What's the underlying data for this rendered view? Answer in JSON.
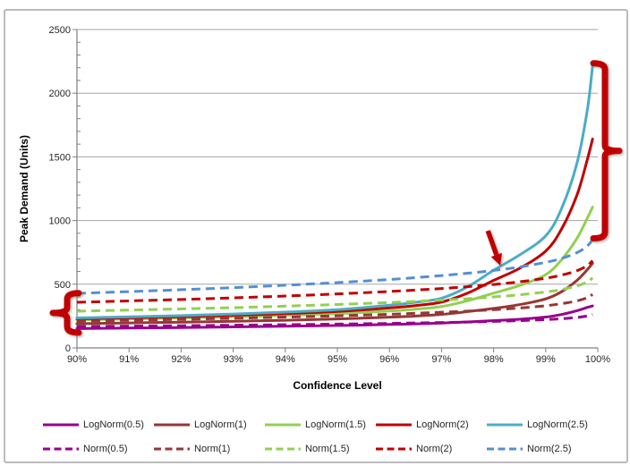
{
  "figure": {
    "background": "#FFFFFF",
    "border_color": "#A6A6A6"
  },
  "chart_data": {
    "type": "line",
    "title": "",
    "xlabel": "Confidence Level",
    "ylabel": "Peak Demand (Units)",
    "xlim": [
      90,
      100
    ],
    "ylim": [
      0,
      2500
    ],
    "x_ticks": [
      "90%",
      "91%",
      "92%",
      "93%",
      "94%",
      "95%",
      "96%",
      "97%",
      "98%",
      "99%",
      "100%"
    ],
    "x_tick_values": [
      90,
      91,
      92,
      93,
      94,
      95,
      96,
      97,
      98,
      99,
      100
    ],
    "y_ticks": [
      "0",
      "500",
      "1000",
      "1500",
      "2000",
      "2500"
    ],
    "y_tick_values": [
      0,
      500,
      1000,
      1500,
      2000,
      2500
    ],
    "y_minor_tick_interval": 100,
    "grid": "horizontal-major",
    "gridline_color": "#A6A6A6",
    "axis_line_color": "#808080",
    "legend_position": "bottom",
    "x": [
      90,
      91,
      92,
      93,
      94,
      95,
      96,
      96.5,
      97,
      97.5,
      98,
      98.5,
      99,
      99.3,
      99.6,
      99.8,
      99.9
    ],
    "series": [
      {
        "name": "LogNorm(0.5)",
        "style": "solid",
        "color": "#99008C",
        "values": [
          152,
          156,
          160,
          165,
          170,
          176,
          184,
          189,
          195,
          204,
          214,
          225,
          242,
          262,
          292,
          318,
          330
        ]
      },
      {
        "name": "LogNorm(1)",
        "style": "solid",
        "color": "#953735",
        "values": [
          190,
          196,
          202,
          209,
          217,
          227,
          241,
          250,
          263,
          285,
          310,
          340,
          385,
          440,
          530,
          615,
          665
        ]
      },
      {
        "name": "LogNorm(1.5)",
        "style": "solid",
        "color": "#92D050",
        "values": [
          220,
          227,
          235,
          244,
          255,
          269,
          290,
          304,
          325,
          370,
          430,
          490,
          575,
          690,
          860,
          1020,
          1105
        ]
      },
      {
        "name": "LogNorm(2)",
        "style": "solid",
        "color": "#C00000",
        "values": [
          228,
          236,
          245,
          256,
          269,
          286,
          314,
          332,
          360,
          430,
          530,
          625,
          760,
          930,
          1200,
          1480,
          1640
        ]
      },
      {
        "name": "LogNorm(2.5)",
        "style": "solid",
        "color": "#4BACC6",
        "values": [
          235,
          244,
          254,
          266,
          281,
          300,
          335,
          358,
          390,
          480,
          610,
          730,
          880,
          1090,
          1450,
          1870,
          2215
        ]
      },
      {
        "name": "Norm(0.5)",
        "style": "dashed",
        "color": "#99008C",
        "values": [
          168,
          171,
          174,
          178,
          182,
          187,
          192,
          196,
          199,
          203,
          208,
          214,
          222,
          229,
          239,
          251,
          262
        ]
      },
      {
        "name": "Norm(1)",
        "style": "dashed",
        "color": "#953735",
        "values": [
          210,
          217,
          224,
          233,
          242,
          252,
          264,
          272,
          280,
          289,
          300,
          313,
          331,
          347,
          369,
          395,
          420
        ]
      },
      {
        "name": "Norm(1.5)",
        "style": "dashed",
        "color": "#92D050",
        "values": [
          288,
          297,
          306,
          316,
          328,
          341,
          356,
          365,
          375,
          386,
          400,
          417,
          439,
          458,
          487,
          519,
          550
        ]
      },
      {
        "name": "Norm(2)",
        "style": "dashed",
        "color": "#C00000",
        "values": [
          358,
          369,
          380,
          393,
          407,
          424,
          443,
          454,
          466,
          481,
          498,
          519,
          547,
          571,
          606,
          647,
          685
        ]
      },
      {
        "name": "Norm(2.5)",
        "style": "dashed",
        "color": "#558ED5",
        "values": [
          428,
          442,
          457,
          473,
          492,
          513,
          537,
          552,
          568,
          586,
          608,
          635,
          672,
          702,
          748,
          801,
          850
        ]
      }
    ],
    "annotations": [
      {
        "type": "brace",
        "side": "left",
        "color": "#C00000",
        "v_top": 430,
        "v_bottom": 120
      },
      {
        "type": "brace",
        "side": "right",
        "color": "#C00000",
        "v_top": 2235,
        "v_bottom": 860
      },
      {
        "type": "arrow",
        "color": "#C00000",
        "from": {
          "x": 97.89,
          "v": 920
        },
        "to": {
          "x": 98.13,
          "v": 645
        }
      }
    ]
  }
}
